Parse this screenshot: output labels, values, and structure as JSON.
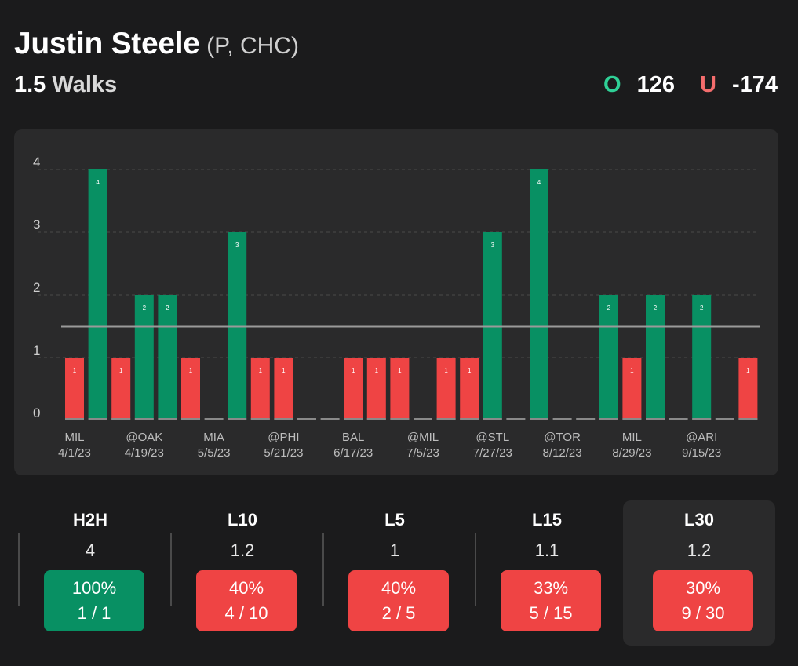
{
  "player": {
    "name": "Justin Steele",
    "meta": "(P, CHC)"
  },
  "market": {
    "line": "1.5",
    "stat": "Walks"
  },
  "odds": {
    "over_symbol": "O",
    "over": "126",
    "under_symbol": "U",
    "under": "-174"
  },
  "colors": {
    "over": "#089063",
    "under": "#ef4444",
    "zero": "#8a8a8a",
    "line": "#9a9a9a"
  },
  "chart_data": {
    "type": "bar",
    "line_value": 1.5,
    "ylim": [
      0,
      4
    ],
    "yticks": [
      "0",
      "1",
      "2",
      "3",
      "4"
    ],
    "values": [
      1,
      4,
      1,
      2,
      2,
      1,
      0,
      3,
      1,
      1,
      0,
      0,
      1,
      1,
      1,
      0,
      1,
      1,
      3,
      0,
      4,
      0,
      0,
      2,
      1,
      2,
      0,
      2,
      0,
      1
    ],
    "x_labels": [
      {
        "index": 0,
        "opp": "MIL",
        "date": "4/1/23"
      },
      {
        "index": 3,
        "opp": "@OAK",
        "date": "4/19/23"
      },
      {
        "index": 6,
        "opp": "MIA",
        "date": "5/5/23"
      },
      {
        "index": 9,
        "opp": "@PHI",
        "date": "5/21/23"
      },
      {
        "index": 12,
        "opp": "BAL",
        "date": "6/17/23"
      },
      {
        "index": 15,
        "opp": "@MIL",
        "date": "7/5/23"
      },
      {
        "index": 18,
        "opp": "@STL",
        "date": "7/27/23"
      },
      {
        "index": 21,
        "opp": "@TOR",
        "date": "8/12/23"
      },
      {
        "index": 24,
        "opp": "MIL",
        "date": "8/29/23"
      },
      {
        "index": 27,
        "opp": "@ARI",
        "date": "9/15/23"
      }
    ]
  },
  "stats": [
    {
      "label": "H2H",
      "avg": "4",
      "pct": "100%",
      "frac": "1 / 1",
      "result": "green"
    },
    {
      "label": "L10",
      "avg": "1.2",
      "pct": "40%",
      "frac": "4 / 10",
      "result": "red"
    },
    {
      "label": "L5",
      "avg": "1",
      "pct": "40%",
      "frac": "2 / 5",
      "result": "red"
    },
    {
      "label": "L15",
      "avg": "1.1",
      "pct": "33%",
      "frac": "5 / 15",
      "result": "red"
    },
    {
      "label": "L30",
      "avg": "1.2",
      "pct": "30%",
      "frac": "9 / 30",
      "result": "red",
      "active": true
    }
  ]
}
